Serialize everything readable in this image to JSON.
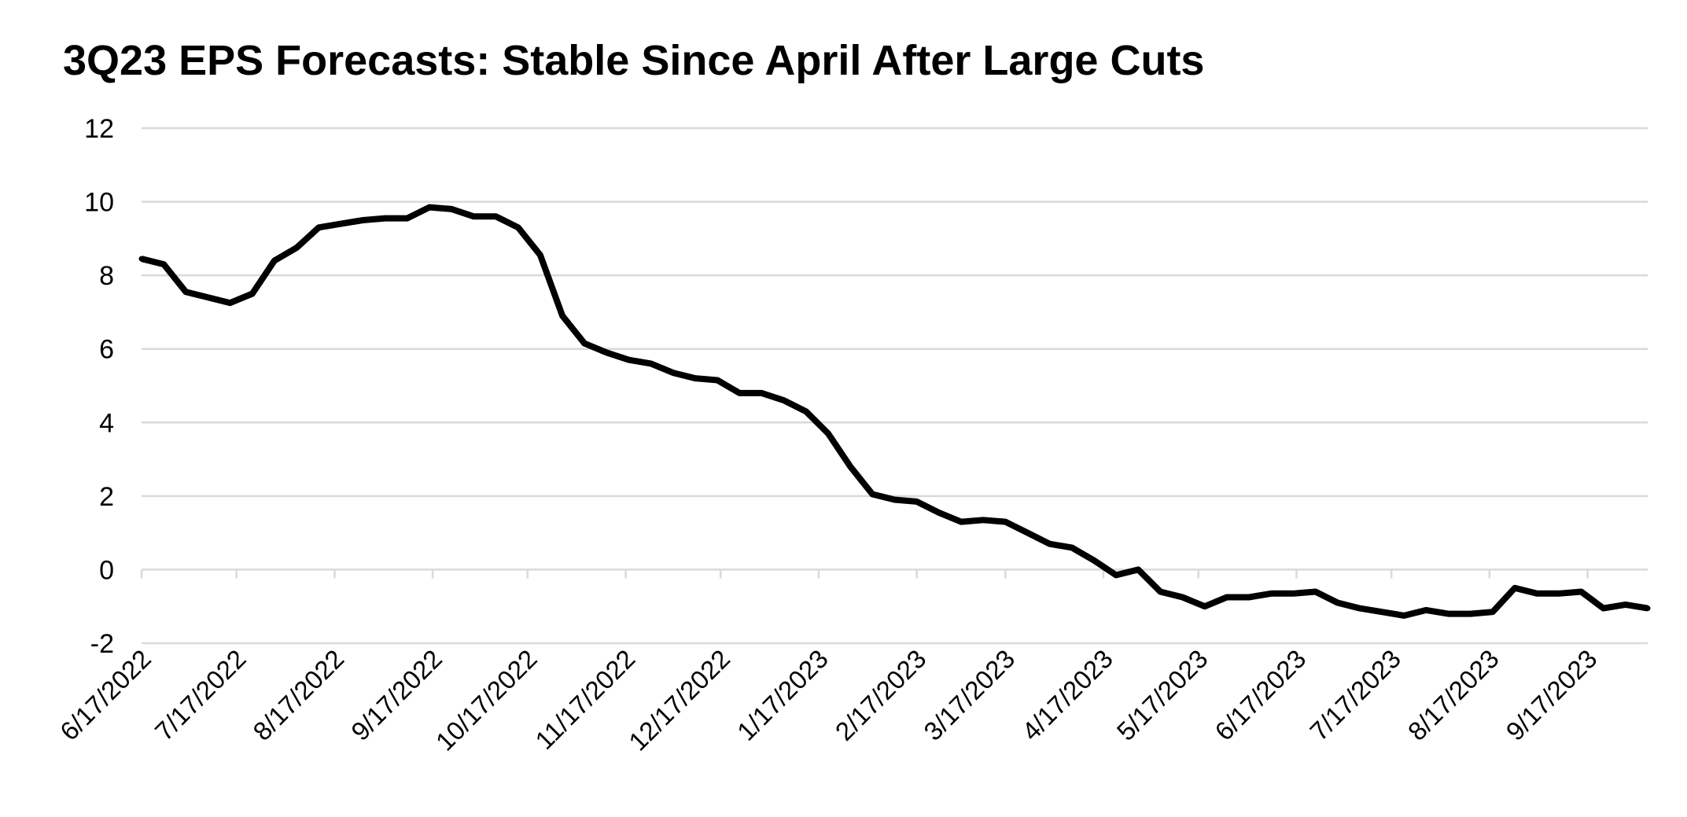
{
  "chart_data": {
    "type": "line",
    "title": "3Q23 EPS Forecasts: Stable Since April After Large Cuts",
    "xlabel": "",
    "ylabel": "",
    "ylim": [
      -2,
      12
    ],
    "yticks": [
      "-2",
      "0",
      "2",
      "4",
      "6",
      "8",
      "10",
      "12"
    ],
    "grid": true,
    "legend": "none",
    "line_color": "#000000",
    "grid_color": "#d9d9d9",
    "xticks": [
      "6/17/2022",
      "7/17/2022",
      "8/17/2022",
      "9/17/2022",
      "10/17/2022",
      "11/17/2022",
      "12/17/2022",
      "1/17/2023",
      "2/17/2023",
      "3/17/2023",
      "4/17/2023",
      "5/17/2023",
      "6/17/2023",
      "7/17/2023",
      "8/17/2023",
      "9/17/2023"
    ],
    "series": [
      {
        "x": [
          "6/17/2022",
          "6/24/2022",
          "7/1/2022",
          "7/8/2022",
          "7/15/2022",
          "7/22/2022",
          "7/29/2022",
          "8/5/2022",
          "8/12/2022",
          "8/19/2022",
          "8/26/2022",
          "9/2/2022",
          "9/9/2022",
          "9/16/2022",
          "9/23/2022",
          "9/30/2022",
          "10/7/2022",
          "10/14/2022",
          "10/21/2022",
          "10/28/2022",
          "11/4/2022",
          "11/11/2022",
          "11/18/2022",
          "11/25/2022",
          "12/2/2022",
          "12/9/2022",
          "12/16/2022",
          "12/23/2022",
          "12/30/2022",
          "1/6/2023",
          "1/13/2023",
          "1/20/2023",
          "1/27/2023",
          "2/3/2023",
          "2/10/2023",
          "2/17/2023",
          "2/24/2023",
          "3/3/2023",
          "3/10/2023",
          "3/17/2023",
          "3/24/2023",
          "3/31/2023",
          "4/7/2023",
          "4/14/2023",
          "4/21/2023",
          "4/28/2023",
          "5/5/2023",
          "5/12/2023",
          "5/19/2023",
          "5/26/2023",
          "6/2/2023",
          "6/9/2023",
          "6/16/2023",
          "6/23/2023",
          "6/30/2023",
          "7/7/2023",
          "7/14/2023",
          "7/21/2023",
          "7/28/2023",
          "8/4/2023",
          "8/11/2023",
          "8/18/2023",
          "8/25/2023",
          "9/1/2023",
          "9/8/2023",
          "9/15/2023",
          "9/22/2023",
          "9/29/2023",
          "10/6/2023"
        ],
        "values": [
          8.45,
          8.3,
          7.55,
          7.4,
          7.25,
          7.5,
          8.4,
          8.75,
          9.3,
          9.4,
          9.5,
          9.55,
          9.55,
          9.85,
          9.8,
          9.6,
          9.6,
          9.3,
          8.55,
          6.9,
          6.15,
          5.9,
          5.7,
          5.6,
          5.35,
          5.2,
          5.15,
          4.8,
          4.8,
          4.6,
          4.3,
          3.7,
          2.8,
          2.05,
          1.9,
          1.85,
          1.55,
          1.3,
          1.35,
          1.3,
          1.0,
          0.7,
          0.6,
          0.25,
          -0.15,
          0.0,
          -0.6,
          -0.75,
          -1.0,
          -0.75,
          -0.75,
          -0.65,
          -0.65,
          -0.6,
          -0.9,
          -1.05,
          -1.15,
          -1.25,
          -1.1,
          -1.2,
          -1.2,
          -1.15,
          -0.5,
          -0.65,
          -0.65,
          -0.6,
          -1.05,
          -0.95,
          -1.05
        ]
      }
    ]
  }
}
